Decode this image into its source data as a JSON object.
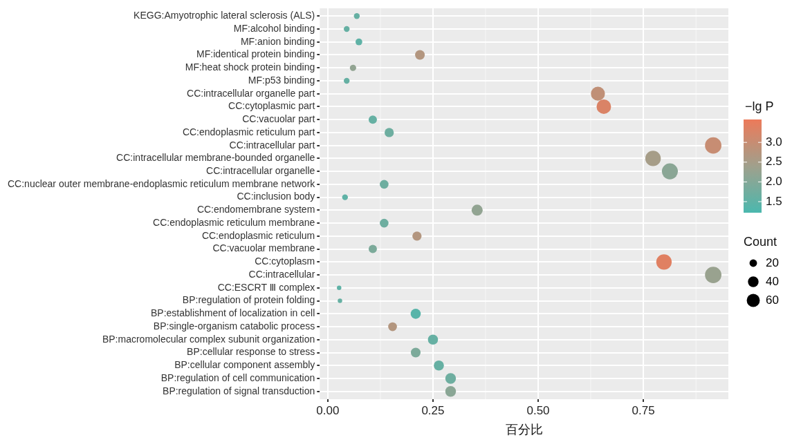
{
  "chart_data": {
    "type": "bubble",
    "orientation": "horizontal",
    "xlabel": "百分比",
    "clabel": "−lg P",
    "legend_title": "Count",
    "categories": [
      "KEGG:Amyotrophic lateral sclerosis (ALS)",
      "MF:alcohol binding",
      "MF:anion binding",
      "MF:identical protein binding",
      "MF:heat shock protein binding",
      "MF:p53 binding",
      "CC:intracellular organelle part",
      "CC:cytoplasmic part",
      "CC:vacuolar part",
      "CC:endoplasmic reticulum part",
      "CC:intracellular part",
      "CC:intracellular membrane-bounded organelle",
      "CC:intracellular organelle",
      "CC:nuclear outer membrane-endoplasmic reticulum membrane network",
      "CC:inclusion body",
      "CC:endomembrane system",
      "CC:endoplasmic reticulum membrane",
      "CC:endoplasmic reticulum",
      "CC:vacuolar membrane",
      "CC:cytoplasm",
      "CC:intracellular",
      "CC:ESCRT Ⅲ complex",
      "BP:regulation of protein folding",
      "BP:establishment of localization in cell",
      "BP:single-organism catabolic process",
      "BP:macromolecular complex subunit organization",
      "BP:cellular response to stress",
      "BP:cellular component assembly",
      "BP:regulation of cell communication",
      "BP:regulation of signal transduction"
    ],
    "values": [
      0.069,
      0.045,
      0.074,
      0.219,
      0.06,
      0.045,
      0.642,
      0.656,
      0.107,
      0.146,
      0.916,
      0.773,
      0.813,
      0.134,
      0.041,
      0.355,
      0.134,
      0.212,
      0.107,
      0.799,
      0.916,
      0.027,
      0.029,
      0.209,
      0.154,
      0.25,
      0.209,
      0.264,
      0.292,
      0.292
    ],
    "sizes": [
      12,
      12,
      16,
      33,
      14,
      12,
      69,
      74,
      24,
      30,
      95,
      84,
      90,
      27,
      12,
      43,
      27,
      30,
      24,
      84,
      95,
      7,
      7,
      36,
      27,
      36,
      33,
      36,
      40,
      40
    ],
    "size_legend": [
      20,
      40,
      60
    ],
    "cvalues": [
      1.6,
      1.6,
      1.5,
      2.7,
      2.2,
      1.6,
      2.9,
      3.3,
      1.6,
      1.7,
      3.0,
      2.5,
      2.1,
      1.7,
      1.5,
      2.2,
      1.7,
      2.7,
      1.9,
      3.4,
      2.3,
      1.5,
      1.6,
      1.4,
      2.7,
      1.6,
      1.9,
      1.6,
      1.7,
      2.1
    ],
    "clim": [
      1.22,
      3.58
    ],
    "cticks": [
      {
        "value": 1.5,
        "label": "1.5"
      },
      {
        "value": 2,
        "label": "2.0"
      },
      {
        "value": 2.5,
        "label": "2.5"
      },
      {
        "value": 3,
        "label": "3.0"
      }
    ],
    "xlim": [
      -0.019,
      0.952
    ],
    "xticks": [
      {
        "value": 0,
        "label": "0.00"
      },
      {
        "value": 0.25,
        "label": "0.25"
      },
      {
        "value": 0.5,
        "label": "0.50"
      },
      {
        "value": 0.75,
        "label": "0.75"
      }
    ],
    "grid": true
  }
}
